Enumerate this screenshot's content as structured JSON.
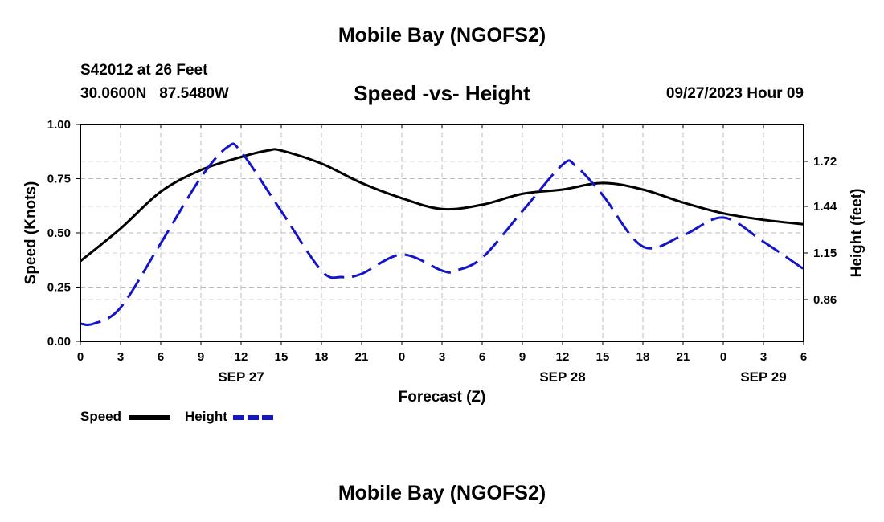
{
  "header": {
    "title": "Mobile Bay (NGOFS2)",
    "station": "S42012 at 26 Feet",
    "coords": "30.0600N   87.5480W",
    "subtitle": "Speed -vs- Height",
    "datetime": "09/27/2023 Hour 09"
  },
  "footer": {
    "title": "Mobile Bay (NGOFS2)"
  },
  "legend": {
    "speed_label": "Speed",
    "height_label": "Height",
    "speed_color": "#000000",
    "height_color": "#1414c8"
  },
  "chart_data": {
    "type": "line",
    "title": "Speed -vs- Height",
    "xlabel": "Forecast (Z)",
    "ylabel": "Speed (Knots)",
    "y2label": "Height (feet)",
    "x_range_hours": [
      0,
      54
    ],
    "x_tick_labels": [
      "0",
      "3",
      "6",
      "9",
      "12",
      "15",
      "18",
      "21",
      "0",
      "3",
      "6",
      "9",
      "12",
      "15",
      "18",
      "21",
      "0",
      "3",
      "6"
    ],
    "date_labels": [
      {
        "label": "SEP 27",
        "at_tick": 4
      },
      {
        "label": "SEP 28",
        "at_tick": 12
      },
      {
        "label": "SEP 29",
        "at_tick": 17
      }
    ],
    "ylim": [
      0,
      1.0
    ],
    "y_ticks": [
      0.0,
      0.25,
      0.5,
      0.75,
      1.0
    ],
    "y_tick_labels": [
      "0.00",
      "0.25",
      "0.50",
      "0.75",
      "1.00"
    ],
    "y2lim": [
      0.6,
      1.95
    ],
    "y2_ticks": [
      0.86,
      1.15,
      1.44,
      1.72
    ],
    "y2_tick_labels": [
      "0.86",
      "1.15",
      "1.44",
      "1.72"
    ],
    "grid": true,
    "legend_position": "bottom-left",
    "series": [
      {
        "name": "Speed",
        "axis": "left",
        "color": "#000000",
        "style": "solid",
        "x": [
          0,
          3,
          6,
          9,
          12,
          14,
          15,
          18,
          21,
          24,
          27,
          30,
          33,
          36,
          39,
          42,
          45,
          48,
          51,
          54
        ],
        "values": [
          0.37,
          0.52,
          0.69,
          0.79,
          0.85,
          0.88,
          0.88,
          0.82,
          0.73,
          0.66,
          0.61,
          0.63,
          0.68,
          0.7,
          0.73,
          0.7,
          0.64,
          0.59,
          0.56,
          0.54
        ]
      },
      {
        "name": "Height",
        "axis": "right",
        "color": "#1414c8",
        "style": "dashed",
        "x": [
          0,
          1,
          3,
          6,
          9,
          11,
          12,
          15,
          18,
          19.5,
          21,
          24,
          27,
          28,
          30,
          33,
          36,
          37,
          39,
          42,
          45,
          48,
          51,
          54
        ],
        "values": [
          0.71,
          0.71,
          0.81,
          1.21,
          1.62,
          1.81,
          1.78,
          1.41,
          1.04,
          1.0,
          1.02,
          1.14,
          1.04,
          1.04,
          1.12,
          1.41,
          1.7,
          1.69,
          1.51,
          1.19,
          1.26,
          1.37,
          1.22,
          1.05
        ]
      }
    ]
  }
}
